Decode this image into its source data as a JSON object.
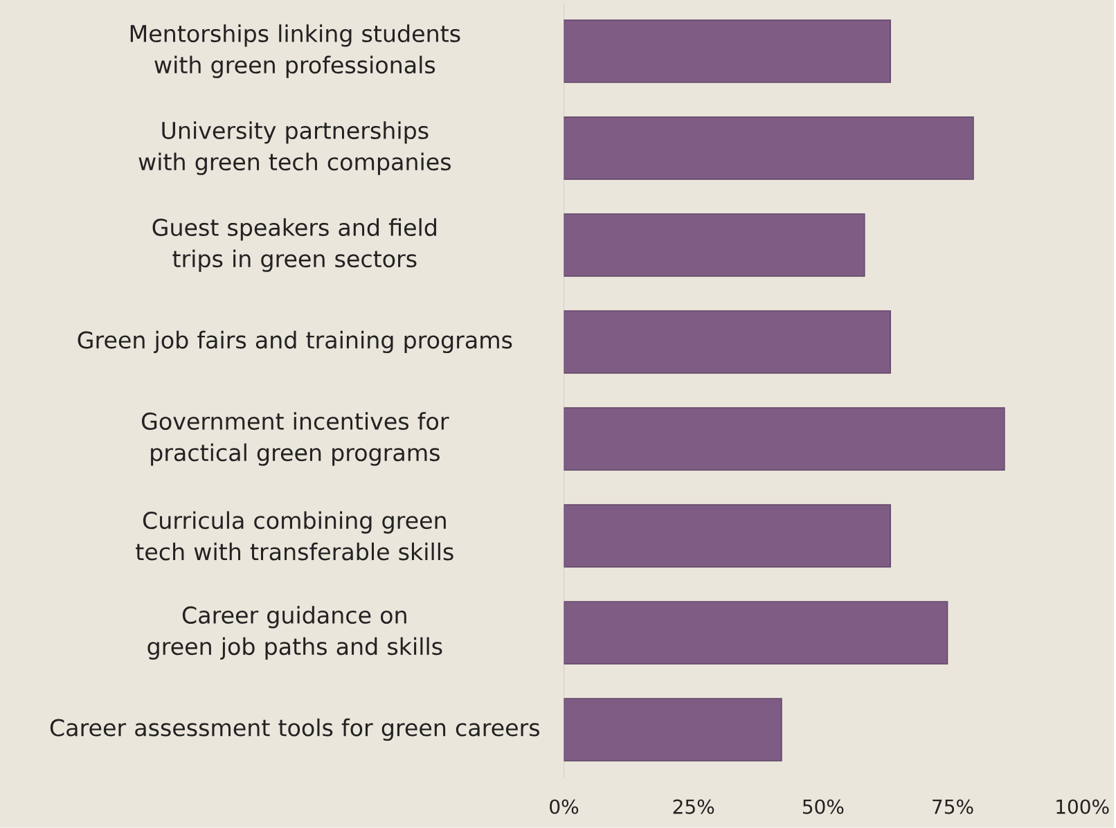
{
  "chart_data": {
    "type": "bar",
    "orientation": "horizontal",
    "categories": [
      "Mentorships linking students with green professionals",
      "University partnerships with green tech companies",
      "Guest speakers and field trips in green sectors",
      "Green job fairs and training programs",
      "Government incentives for practical green programs",
      "Curricula combining green tech with transferable skills",
      "Career guidance on green job paths and skills",
      "Career assessment tools for green careers"
    ],
    "values": [
      63,
      79,
      58,
      63,
      85,
      63,
      74,
      42
    ],
    "color": "#7e5c84",
    "xlim": [
      0,
      100
    ],
    "xticks": [
      {
        "value": 0,
        "label": "0%"
      },
      {
        "value": 25,
        "label": "25%"
      },
      {
        "value": 50,
        "label": "50%"
      },
      {
        "value": 75,
        "label": "75%"
      },
      {
        "value": 100,
        "label": "100%"
      }
    ]
  }
}
